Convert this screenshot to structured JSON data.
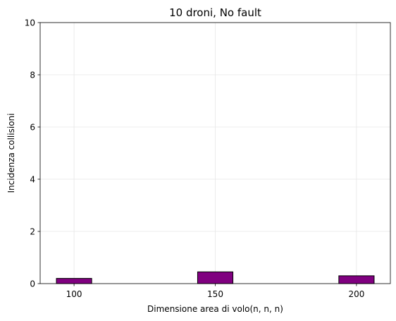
{
  "chart_data": {
    "type": "bar",
    "title": "10 droni, No fault",
    "xlabel": "Dimensione area di volo(n, n, n)",
    "ylabel": "Incidenza collisioni",
    "categories": [
      "100",
      "150",
      "200"
    ],
    "x": [
      100,
      150,
      200
    ],
    "values": [
      0.2,
      0.45,
      0.3
    ],
    "xlim": [
      88,
      212
    ],
    "ylim": [
      0,
      10
    ],
    "yticks": [
      0,
      2,
      4,
      6,
      8,
      10
    ],
    "bar_color": "#800080",
    "edge_color": "#000000",
    "grid": true,
    "legend": "none"
  }
}
